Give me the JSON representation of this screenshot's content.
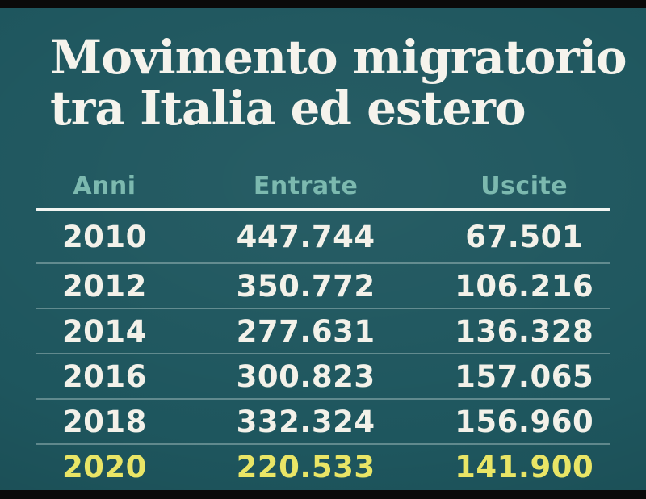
{
  "title": {
    "line1": "Movimento migratorio",
    "line2": "tra Italia ed estero"
  },
  "table": {
    "columns": [
      "Anni",
      "Entrate",
      "Uscite"
    ],
    "rows": [
      {
        "year": "2010",
        "entrate": "447.744",
        "uscite": "67.501",
        "highlight": false
      },
      {
        "year": "2012",
        "entrate": "350.772",
        "uscite": "106.216",
        "highlight": false
      },
      {
        "year": "2014",
        "entrate": "277.631",
        "uscite": "136.328",
        "highlight": false
      },
      {
        "year": "2016",
        "entrate": "300.823",
        "uscite": "157.065",
        "highlight": false
      },
      {
        "year": "2018",
        "entrate": "332.324",
        "uscite": "156.960",
        "highlight": false
      },
      {
        "year": "2020",
        "entrate": "220.533",
        "uscite": "141.900",
        "highlight": true
      }
    ]
  },
  "chart_data": {
    "type": "table",
    "title": "Movimento migratorio tra Italia ed estero",
    "columns": [
      "Anni",
      "Entrate",
      "Uscite"
    ],
    "categories": [
      "2010",
      "2012",
      "2014",
      "2016",
      "2018",
      "2020"
    ],
    "series": [
      {
        "name": "Entrate",
        "values": [
          447744,
          350772,
          277631,
          300823,
          332324,
          220533
        ]
      },
      {
        "name": "Uscite",
        "values": [
          67501,
          106216,
          136328,
          157065,
          156960,
          141900
        ]
      }
    ],
    "highlighted_category": "2020",
    "number_format": "it-IT thousands separator (.)"
  },
  "colors": {
    "background": "#1e565e",
    "bar_color": "#0a0a0a",
    "title_text": "#f5f3ec",
    "header_text": "#7cb9af",
    "row_text": "#f3f1e9",
    "highlight_text": "#e9e566"
  }
}
